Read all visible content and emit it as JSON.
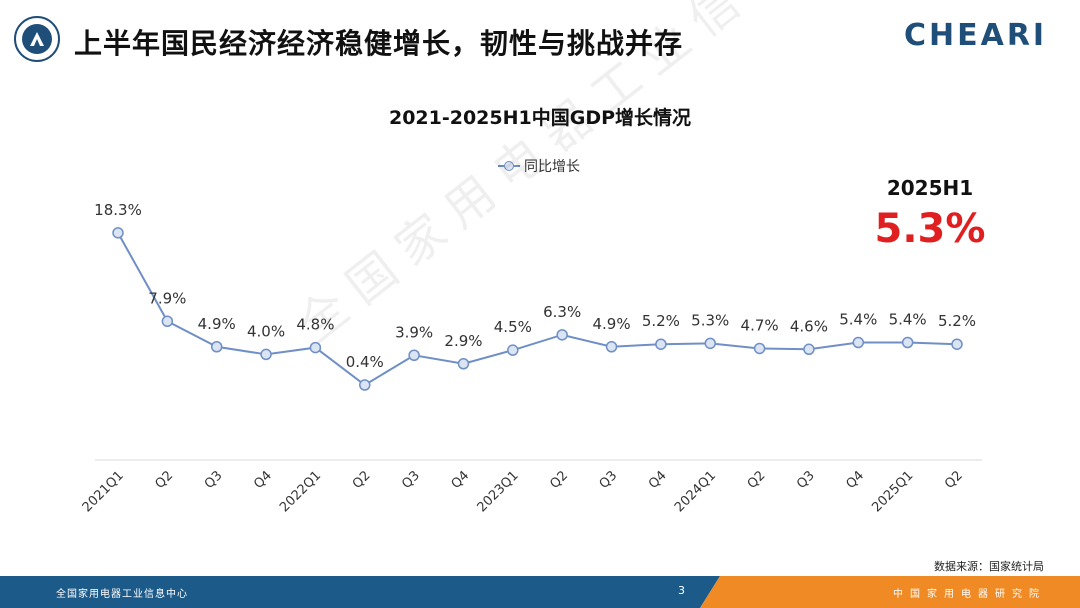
{
  "header": {
    "title": "上半年国民经济经济稳健增长，韧性与挑战并存",
    "brand": "CHEARI"
  },
  "highlight": {
    "label": "2025H1",
    "value": "5.3%"
  },
  "watermark": "全国家用电器工业信息中心",
  "source": "数据来源：国家统计局",
  "footer": {
    "left_text": "全国家用电器工业信息中心",
    "page_number": "3",
    "right_text": "中国家用电器研究院"
  },
  "colors": {
    "line": "#6f8fc6",
    "marker_fill": "#dbe4f3",
    "highlight": "#e02020",
    "footer_blue": "#1c5a8a",
    "footer_orange": "#f08a24"
  },
  "chart_data": {
    "type": "line",
    "title": "2021-2025H1中国GDP增长情况",
    "categories": [
      "2021Q1",
      "Q2",
      "Q3",
      "Q4",
      "2022Q1",
      "Q2",
      "Q3",
      "Q4",
      "2023Q1",
      "Q2",
      "Q3",
      "Q4",
      "2024Q1",
      "Q2",
      "Q3",
      "Q4",
      "2025Q1",
      "Q2"
    ],
    "series": [
      {
        "name": "同比增长",
        "values": [
          18.3,
          7.9,
          4.9,
          4.0,
          4.8,
          0.4,
          3.9,
          2.9,
          4.5,
          6.3,
          4.9,
          5.2,
          5.3,
          4.7,
          4.6,
          5.4,
          5.4,
          5.2
        ],
        "labels": [
          "18.3%",
          "7.9%",
          "4.9%",
          "4.0%",
          "4.8%",
          "0.4%",
          "3.9%",
          "2.9%",
          "4.5%",
          "6.3%",
          "4.9%",
          "5.2%",
          "5.3%",
          "4.7%",
          "4.6%",
          "5.4%",
          "5.4%",
          "5.2%"
        ]
      }
    ],
    "legend": "top-center",
    "grid": false
  }
}
